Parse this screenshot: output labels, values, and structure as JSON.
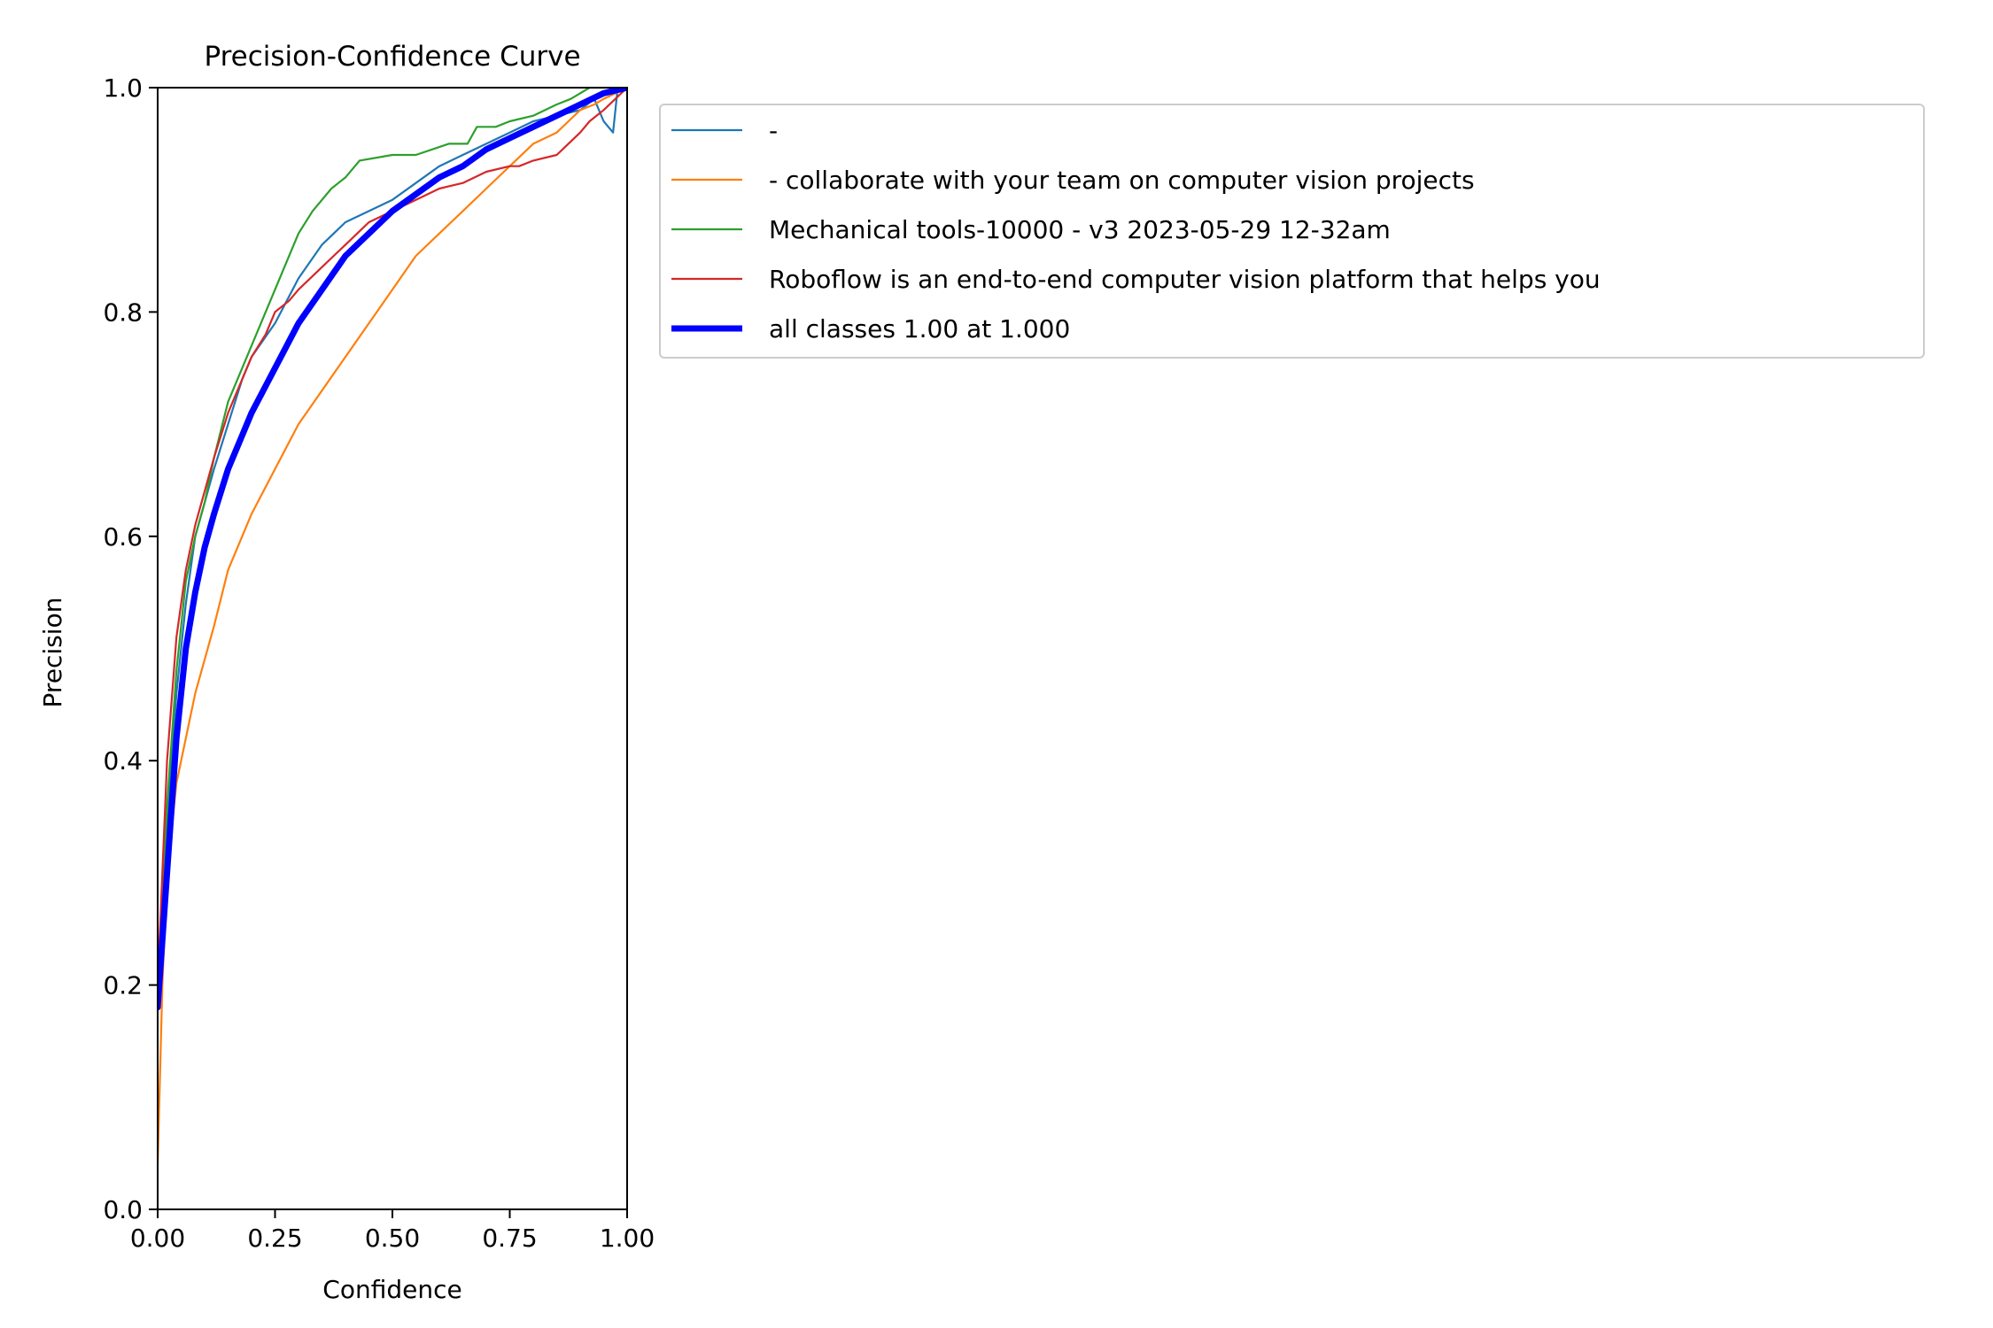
{
  "chart_data": {
    "type": "line",
    "title": "Precision-Confidence Curve",
    "xlabel": "Confidence",
    "ylabel": "Precision",
    "xlim": [
      0,
      1
    ],
    "ylim": [
      0,
      1
    ],
    "xticks": [
      "0.00",
      "0.25",
      "0.50",
      "0.75",
      "1.00"
    ],
    "yticks": [
      "0.0",
      "0.2",
      "0.4",
      "0.6",
      "0.8",
      "1.0"
    ],
    "grid": false,
    "legend_position": "upper-left-outside",
    "series": [
      {
        "name": "-",
        "color": "#1f77b4",
        "x": [
          0,
          0.01,
          0.02,
          0.04,
          0.06,
          0.08,
          0.1,
          0.12,
          0.15,
          0.18,
          0.2,
          0.25,
          0.3,
          0.35,
          0.4,
          0.45,
          0.5,
          0.55,
          0.6,
          0.65,
          0.7,
          0.75,
          0.8,
          0.85,
          0.9,
          0.93,
          0.95,
          0.97,
          0.98,
          1.0
        ],
        "values": [
          0.2,
          0.27,
          0.34,
          0.46,
          0.54,
          0.6,
          0.63,
          0.66,
          0.7,
          0.74,
          0.76,
          0.79,
          0.83,
          0.86,
          0.88,
          0.89,
          0.9,
          0.915,
          0.93,
          0.94,
          0.95,
          0.96,
          0.97,
          0.975,
          0.98,
          0.99,
          0.97,
          0.96,
          1.0,
          1.0
        ]
      },
      {
        "name": "- collaborate with your team on computer vision projects",
        "color": "#ff7f0e",
        "x": [
          0,
          0.01,
          0.02,
          0.04,
          0.06,
          0.08,
          0.1,
          0.12,
          0.15,
          0.18,
          0.2,
          0.25,
          0.3,
          0.35,
          0.4,
          0.45,
          0.5,
          0.55,
          0.6,
          0.65,
          0.7,
          0.75,
          0.8,
          0.85,
          0.9,
          0.93,
          0.95,
          1.0
        ],
        "values": [
          0.04,
          0.2,
          0.3,
          0.38,
          0.42,
          0.46,
          0.49,
          0.52,
          0.57,
          0.6,
          0.62,
          0.66,
          0.7,
          0.73,
          0.76,
          0.79,
          0.82,
          0.85,
          0.87,
          0.89,
          0.91,
          0.93,
          0.95,
          0.96,
          0.98,
          0.985,
          0.99,
          1.0
        ]
      },
      {
        "name": "Mechanical tools-10000 - v3 2023-05-29 12-32am",
        "color": "#2ca02c",
        "x": [
          0,
          0.01,
          0.02,
          0.04,
          0.06,
          0.08,
          0.1,
          0.12,
          0.15,
          0.18,
          0.2,
          0.22,
          0.25,
          0.27,
          0.3,
          0.33,
          0.37,
          0.4,
          0.43,
          0.5,
          0.55,
          0.62,
          0.66,
          0.68,
          0.72,
          0.75,
          0.8,
          0.85,
          0.88,
          0.92,
          1.0
        ],
        "values": [
          0.2,
          0.28,
          0.36,
          0.48,
          0.56,
          0.6,
          0.63,
          0.67,
          0.72,
          0.75,
          0.77,
          0.79,
          0.82,
          0.84,
          0.87,
          0.89,
          0.91,
          0.92,
          0.935,
          0.94,
          0.94,
          0.95,
          0.95,
          0.965,
          0.965,
          0.97,
          0.975,
          0.985,
          0.99,
          1.0,
          1.0
        ]
      },
      {
        "name": "Roboflow is an end-to-end computer vision platform that helps you",
        "color": "#d62728",
        "x": [
          0,
          0.01,
          0.02,
          0.04,
          0.06,
          0.08,
          0.1,
          0.12,
          0.15,
          0.18,
          0.2,
          0.23,
          0.25,
          0.28,
          0.3,
          0.35,
          0.4,
          0.45,
          0.5,
          0.55,
          0.6,
          0.65,
          0.7,
          0.75,
          0.77,
          0.8,
          0.85,
          0.9,
          0.92,
          0.95,
          1.0
        ],
        "values": [
          0.2,
          0.3,
          0.4,
          0.51,
          0.57,
          0.61,
          0.64,
          0.67,
          0.71,
          0.74,
          0.76,
          0.78,
          0.8,
          0.81,
          0.82,
          0.84,
          0.86,
          0.88,
          0.89,
          0.9,
          0.91,
          0.915,
          0.925,
          0.93,
          0.93,
          0.935,
          0.94,
          0.96,
          0.97,
          0.98,
          1.0
        ]
      },
      {
        "name": "all classes 1.00 at 1.000",
        "color": "#0000ff",
        "bold": true,
        "x": [
          0,
          0.01,
          0.02,
          0.04,
          0.06,
          0.08,
          0.1,
          0.12,
          0.15,
          0.18,
          0.2,
          0.25,
          0.3,
          0.35,
          0.4,
          0.45,
          0.5,
          0.55,
          0.6,
          0.65,
          0.7,
          0.75,
          0.8,
          0.85,
          0.9,
          0.95,
          1.0
        ],
        "values": [
          0.18,
          0.24,
          0.3,
          0.42,
          0.5,
          0.55,
          0.59,
          0.62,
          0.66,
          0.69,
          0.71,
          0.75,
          0.79,
          0.82,
          0.85,
          0.87,
          0.89,
          0.905,
          0.92,
          0.93,
          0.945,
          0.955,
          0.965,
          0.975,
          0.985,
          0.995,
          1.0
        ]
      }
    ]
  }
}
